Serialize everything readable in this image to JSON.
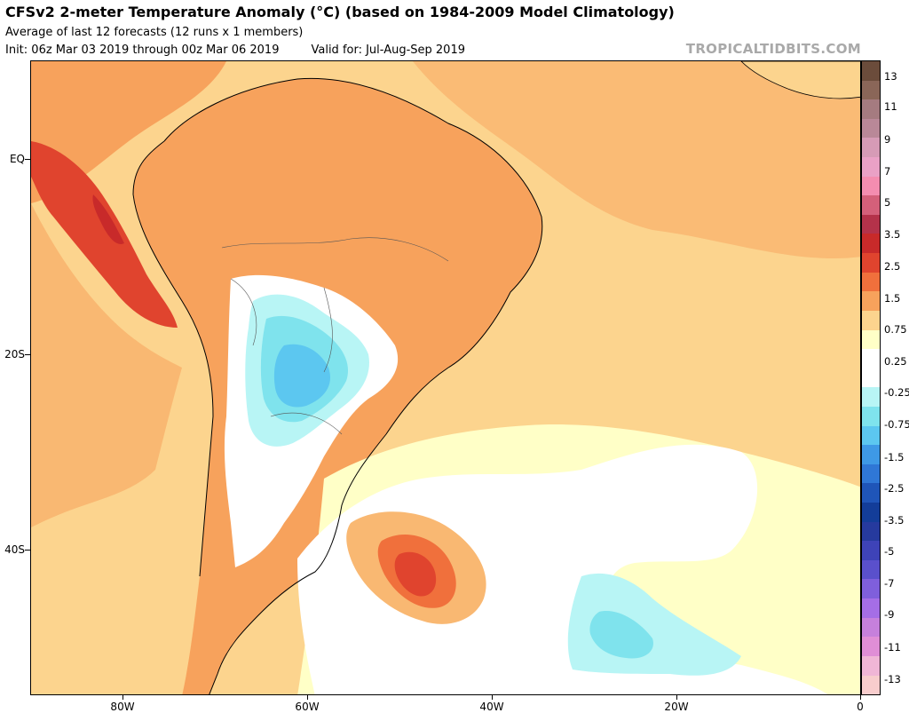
{
  "header": {
    "title": "CFSv2 2-meter Temperature Anomaly (°C) (based on 1984-2009 Model Climatology)",
    "subtitle": "Average of last 12 forecasts (12 runs x 1 members)",
    "init": "Init: 06z Mar 03 2019 through 00z Mar 06 2019",
    "valid": "Valid for: Jul-Aug-Sep 2019",
    "brand": "TROPICALTIDBITS.COM"
  },
  "map": {
    "lat_labels": [
      "EQ",
      "20S",
      "40S"
    ],
    "lon_labels": [
      "80W",
      "60W",
      "40W",
      "20W",
      "0"
    ]
  },
  "colorbar": {
    "labels": [
      "13",
      "11",
      "9",
      "7",
      "5",
      "3.5",
      "2.5",
      "1.5",
      "0.75",
      "0.25",
      "-0.25",
      "-0.75",
      "-1.5",
      "-2.5",
      "-3.5",
      "-5",
      "-7",
      "-9",
      "-11",
      "-13"
    ],
    "colors": [
      "#6b4c3b",
      "#8a6658",
      "#a57b80",
      "#b98898",
      "#d69bb6",
      "#eaa1c6",
      "#f48db0",
      "#d4607a",
      "#b4324a",
      "#c82a2a",
      "#e0442e",
      "#f0703c",
      "#f7a25c",
      "#fcd48e",
      "#ffffc7",
      "#ffffff",
      "#ffffff",
      "#b8f5f5",
      "#7fe3ed",
      "#5cc7f0",
      "#3e99e6",
      "#2f77d6",
      "#1f55b8",
      "#133d99",
      "#263a9e",
      "#3e43b8",
      "#5a50cc",
      "#7f5fdc",
      "#a56ee6",
      "#c680dc",
      "#e08ed6",
      "#f0b6d6",
      "#f8cdcd"
    ]
  }
}
